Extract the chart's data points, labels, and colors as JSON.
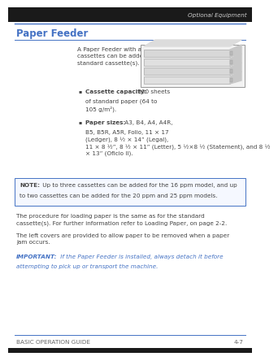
{
  "page_bg": "#ffffff",
  "black_strip": "#1a1a1a",
  "blue_color": "#4472C4",
  "gray_text": "#444444",
  "header_text": "Optional Equipment",
  "section_title": "Paper Feeder",
  "footer_left": "BASIC OPERATION GUIDE",
  "footer_right": "4-7",
  "intro_text": "A Paper Feeder with additional\ncassettes can be added below the\nstandard cassette(s).",
  "bullet1_bold": "Cassette capacity:",
  "bullet1_rest": " 300 sheets\nof standard paper (64 to\n105 g/m²).",
  "bullet2_bold": "Paper sizes:",
  "bullet2_rest": " A3, B4, A4, A4R,\nB5, B5R, A5R, Folio, 11 × 17\n(Ledger), 8 ½ × 14” (Legal),\n11 × 8 ½”, 8 ½ × 11” (Letter), 5 ½×8 ½\n(Statement), and 8 ½\n× 13” (Oficio II).",
  "note_bold": "NOTE:",
  "note_rest": " Up to three cassettes can be added for the 16 ppm model, and up\nto two cassettes can be added for the 20 ppm and 25 ppm models.",
  "para1": "The procedure for loading paper is the same as for the standard\ncassette(s). For further information refer to Loading Paper, on page 2-2.",
  "para2": "The left covers are provided to allow paper to be removed when a paper\njam occurs.",
  "imp_bold": "IMPORTANT:",
  "imp_rest": " If the Paper Feeder is installed, always detach it before\nattempting to pick up or transport the machine."
}
